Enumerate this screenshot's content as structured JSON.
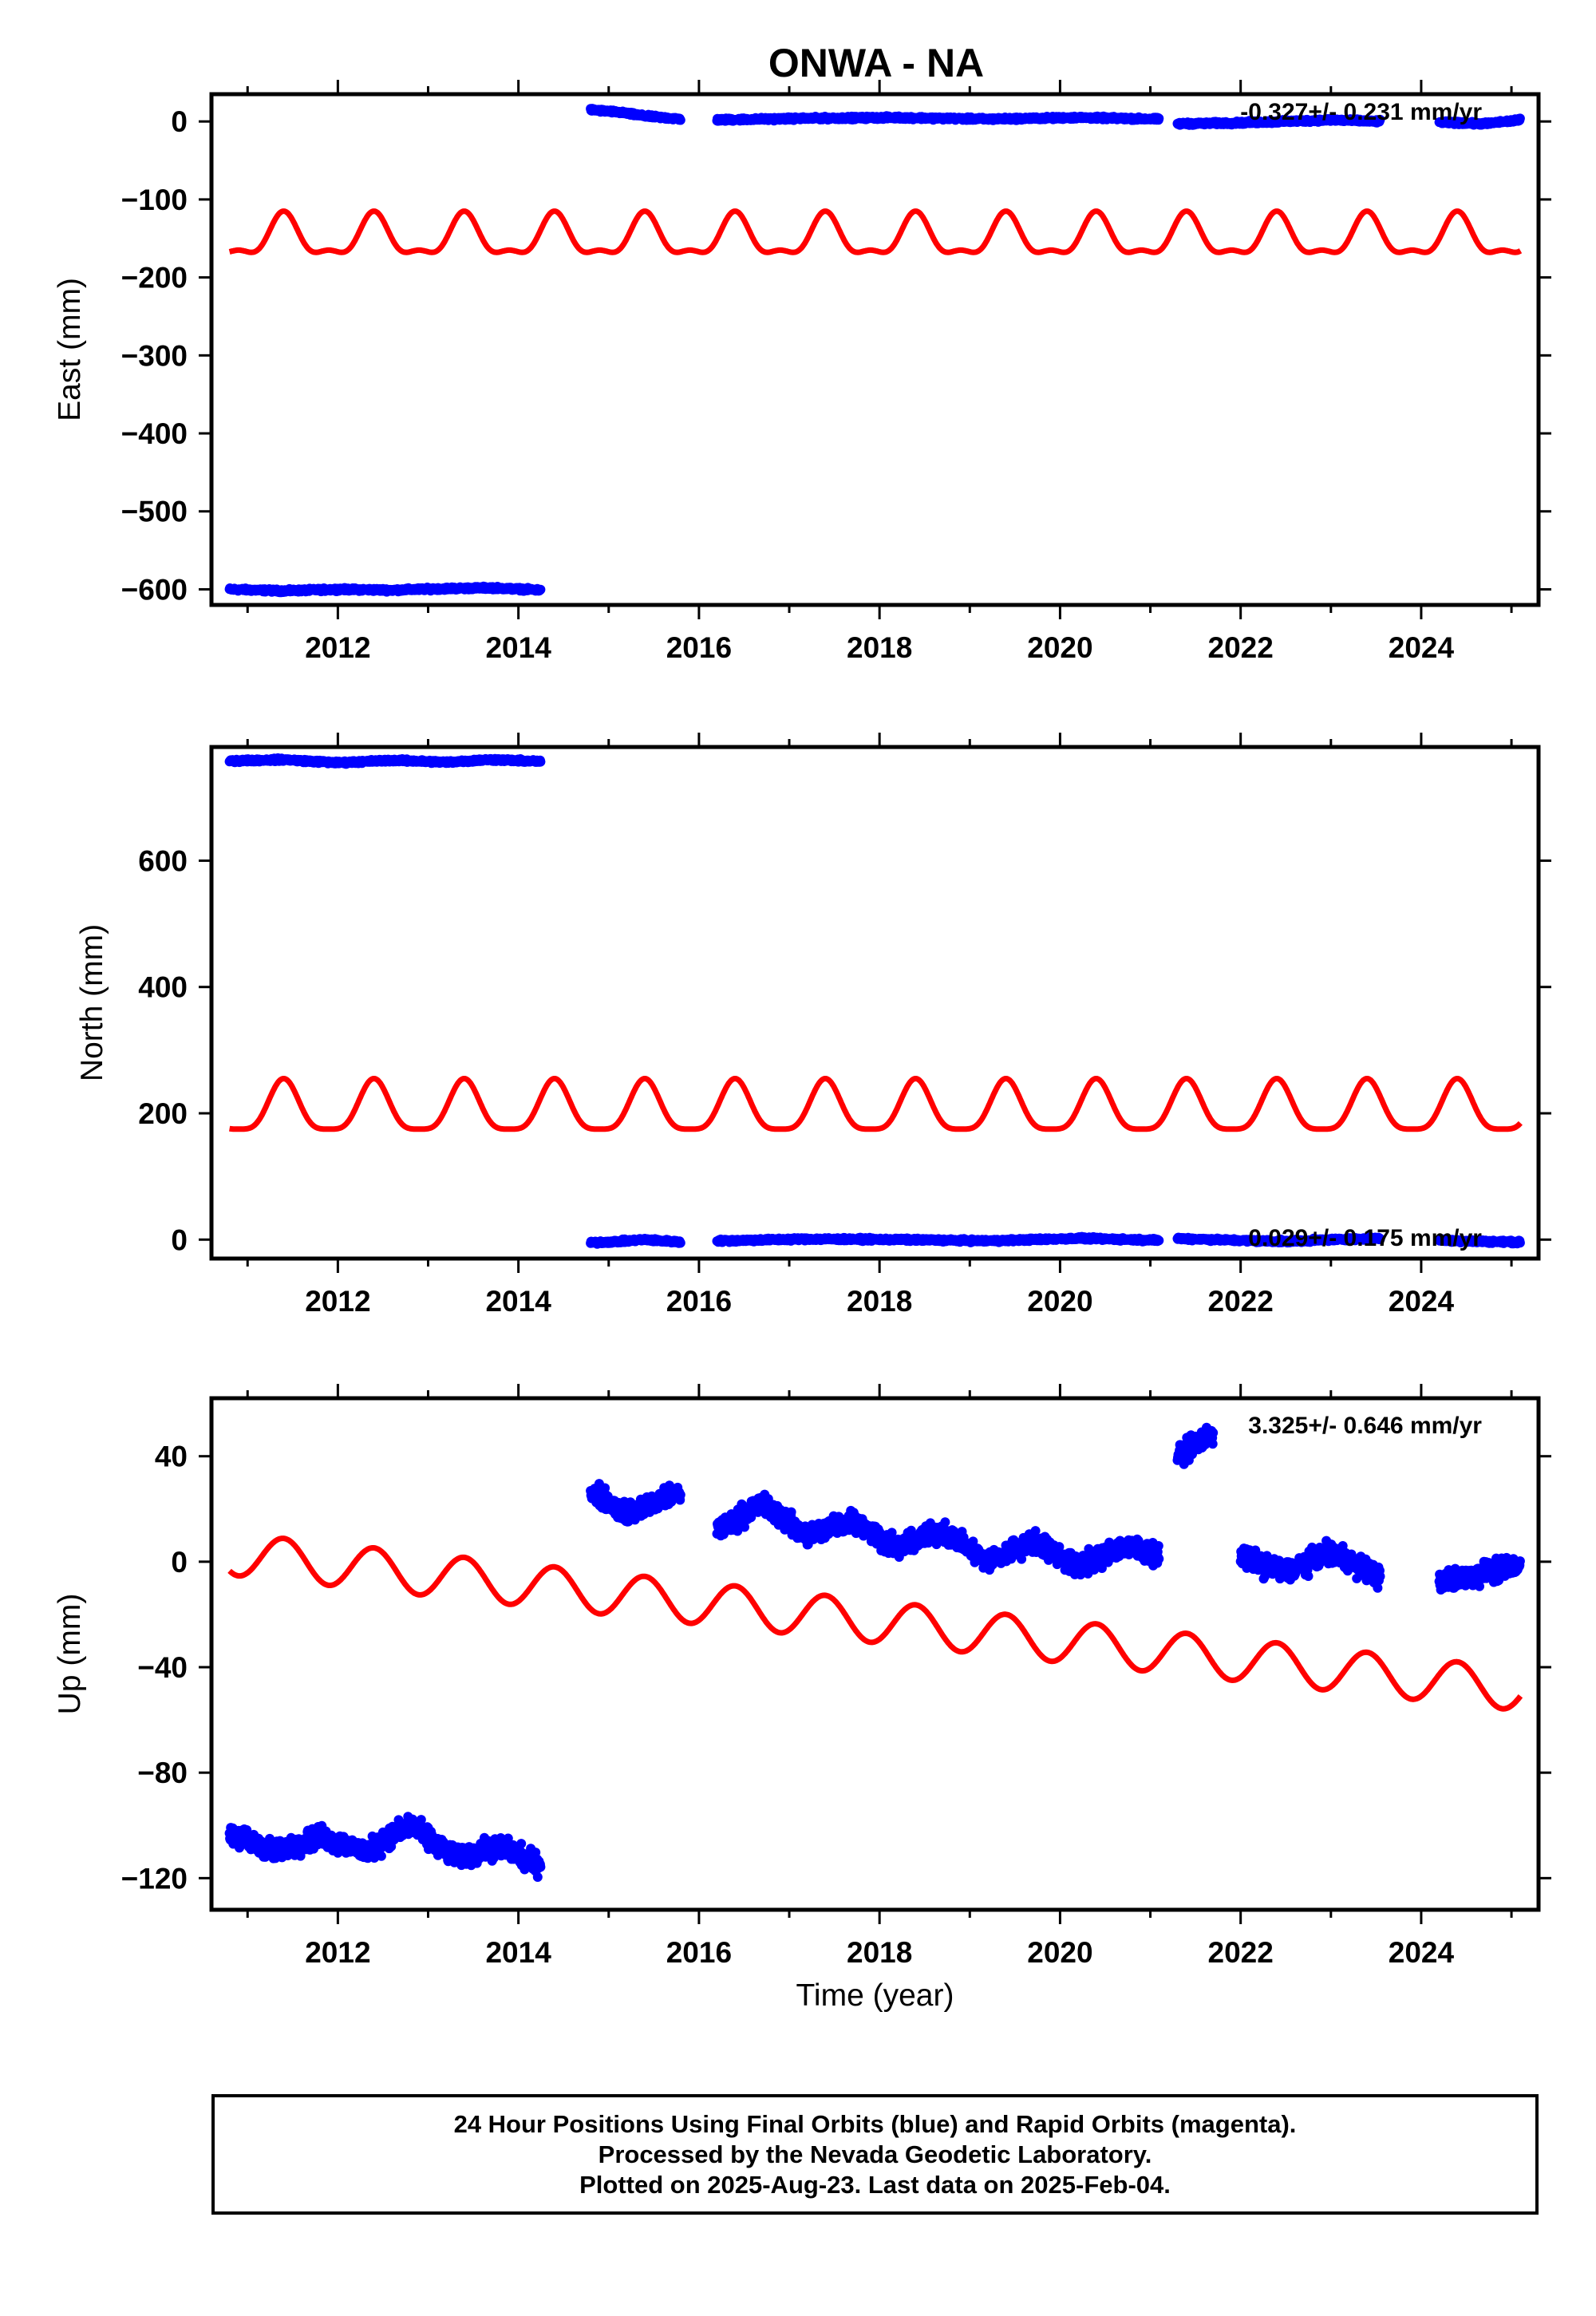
{
  "title": "ONWA - NA",
  "chart_data": [
    {
      "type": "scatter",
      "name": "east",
      "ylabel": "East (mm)",
      "xlabel": "",
      "xlim": [
        2010.6,
        2025.3
      ],
      "ylim": [
        -620,
        35
      ],
      "x_ticks": [
        2012,
        2014,
        2016,
        2018,
        2020,
        2022,
        2024
      ],
      "y_ticks": [
        0,
        -100,
        -200,
        -300,
        -400,
        -500,
        -600
      ],
      "y_tick_labels": [
        "0",
        "−100",
        "−200",
        "−300",
        "−400",
        "−500",
        "−600"
      ],
      "rate_label": "-0.327+/- 0.231 mm/yr",
      "observed_segments": [
        {
          "x": [
            2010.8,
            2011.4,
            2012.0,
            2012.6,
            2013.2,
            2013.7,
            2014.25
          ],
          "y": [
            -600,
            -602,
            -600,
            -601,
            -599,
            -598,
            -601
          ]
        },
        {
          "x": [
            2014.8,
            2015.1,
            2015.4,
            2015.8
          ],
          "y": [
            15,
            12,
            7,
            3
          ]
        },
        {
          "x": [
            2016.2,
            2017.2,
            2018.2,
            2019.2,
            2020.2,
            2021.1
          ],
          "y": [
            2,
            4,
            5,
            3,
            5,
            3
          ]
        },
        {
          "x": [
            2021.3,
            2021.9,
            2022.5,
            2023.0,
            2023.55
          ],
          "y": [
            -3,
            -2,
            0,
            2,
            0
          ]
        },
        {
          "x": [
            2024.2,
            2024.7,
            2025.1
          ],
          "y": [
            -1,
            -3,
            2
          ]
        }
      ],
      "model": {
        "base": -150,
        "trend_per_year": 0,
        "annual_amp": 25,
        "semiannual_amp": 10
      }
    },
    {
      "type": "scatter",
      "name": "north",
      "ylabel": "North (mm)",
      "xlabel": "",
      "xlim": [
        2010.6,
        2025.3
      ],
      "ylim": [
        -30,
        780
      ],
      "x_ticks": [
        2012,
        2014,
        2016,
        2018,
        2020,
        2022,
        2024
      ],
      "y_ticks": [
        0,
        200,
        400,
        600
      ],
      "y_tick_labels": [
        "0",
        "200",
        "400",
        "600"
      ],
      "rate_label": "0.029+/- 0.175 mm/yr",
      "observed_segments": [
        {
          "x": [
            2010.8,
            2011.4,
            2012.0,
            2012.6,
            2013.2,
            2013.7,
            2014.25
          ],
          "y": [
            758,
            760,
            755,
            759,
            756,
            760,
            757
          ]
        },
        {
          "x": [
            2014.8,
            2015.1,
            2015.4,
            2015.8
          ],
          "y": [
            -5,
            -3,
            0,
            -4
          ]
        },
        {
          "x": [
            2016.2,
            2017.2,
            2018.2,
            2019.2,
            2020.2,
            2021.1
          ],
          "y": [
            -2,
            1,
            0,
            -2,
            2,
            -1
          ]
        },
        {
          "x": [
            2021.3,
            2021.9,
            2022.5,
            2023.0,
            2023.55
          ],
          "y": [
            2,
            -1,
            -3,
            0,
            2
          ]
        },
        {
          "x": [
            2024.2,
            2024.7,
            2025.1
          ],
          "y": [
            -1,
            -3,
            -4
          ]
        }
      ],
      "model": {
        "base": 205,
        "trend_per_year": 0,
        "annual_amp": 40,
        "semiannual_amp": 10
      }
    },
    {
      "type": "scatter",
      "name": "up",
      "ylabel": "Up (mm)",
      "xlabel": "Time (year)",
      "xlim": [
        2010.6,
        2025.3
      ],
      "ylim": [
        -132,
        62
      ],
      "x_ticks": [
        2012,
        2014,
        2016,
        2018,
        2020,
        2022,
        2024
      ],
      "y_ticks": [
        40,
        0,
        -40,
        -80,
        -120
      ],
      "y_tick_labels": [
        "40",
        "0",
        "−40",
        "−80",
        "−120"
      ],
      "rate_label": "3.325+/- 0.646 mm/yr",
      "observed_segments": [
        {
          "x": [
            2010.8,
            2011.3,
            2011.8,
            2012.3,
            2012.8,
            2013.3,
            2013.8,
            2014.25
          ],
          "y": [
            -103,
            -110,
            -104,
            -110,
            -100,
            -112,
            -108,
            -115
          ]
        },
        {
          "x": [
            2014.8,
            2015.2,
            2015.5,
            2015.8
          ],
          "y": [
            27,
            18,
            22,
            26
          ]
        },
        {
          "x": [
            2016.2,
            2016.7,
            2017.2,
            2017.7,
            2018.2,
            2018.7,
            2019.2,
            2019.7,
            2020.2,
            2020.7,
            2021.1
          ],
          "y": [
            12,
            22,
            10,
            16,
            5,
            12,
            0,
            8,
            -2,
            6,
            3
          ]
        },
        {
          "x": [
            2021.3,
            2021.5,
            2021.7
          ],
          "y": [
            40,
            45,
            48
          ]
        },
        {
          "x": [
            2022.0,
            2022.5,
            2023.0,
            2023.55
          ],
          "y": [
            2,
            -4,
            4,
            -6
          ]
        },
        {
          "x": [
            2024.2,
            2024.7,
            2025.1
          ],
          "y": [
            -8,
            -4,
            -2
          ]
        }
      ],
      "model": {
        "base": 3,
        "trend_per_year": -3.6,
        "annual_amp": 8,
        "semiannual_amp": 0
      }
    }
  ],
  "footer": {
    "line1": "24 Hour Positions Using Final Orbits (blue) and Rapid Orbits (magenta).",
    "line2": "Processed by the Nevada Geodetic Laboratory.",
    "line3": "Plotted on 2025-Aug-23. Last data on 2025-Feb-04."
  },
  "colors": {
    "observed": "#0000ff",
    "model": "#ff0000",
    "axis": "#000000"
  }
}
